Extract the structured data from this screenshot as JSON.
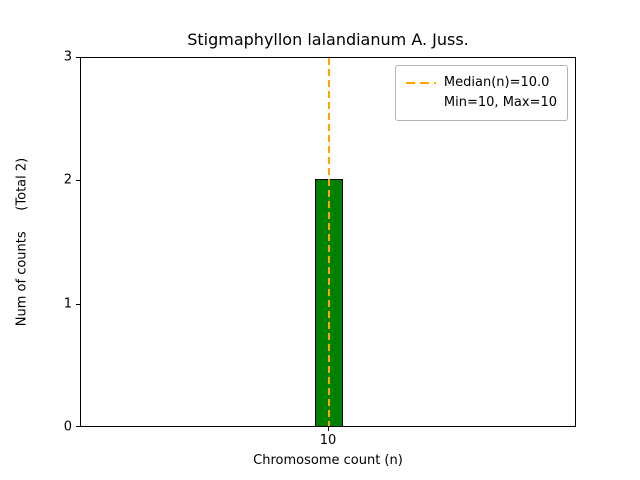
{
  "chart_data": {
    "type": "bar",
    "title": "Stigmaphyllon lalandianum A. Juss.",
    "xlabel": "Chromosome count (n)",
    "ylabel": "Num of counts     (Total 2)",
    "categories": [
      10
    ],
    "values": [
      2
    ],
    "ylim": [
      0,
      3
    ],
    "yticks": [
      0,
      1,
      2,
      3
    ],
    "xticks": [
      "10"
    ],
    "bar_color": "#008000",
    "bar_edge_color": "#000000",
    "median_line": {
      "value": 10.0,
      "color": "#ffa500",
      "style": "dashed"
    },
    "legend": {
      "position": "upper right",
      "entries": [
        "Median(n)=10.0",
        "Min=10, Max=10"
      ]
    },
    "grid": false,
    "total_counts": 2
  }
}
